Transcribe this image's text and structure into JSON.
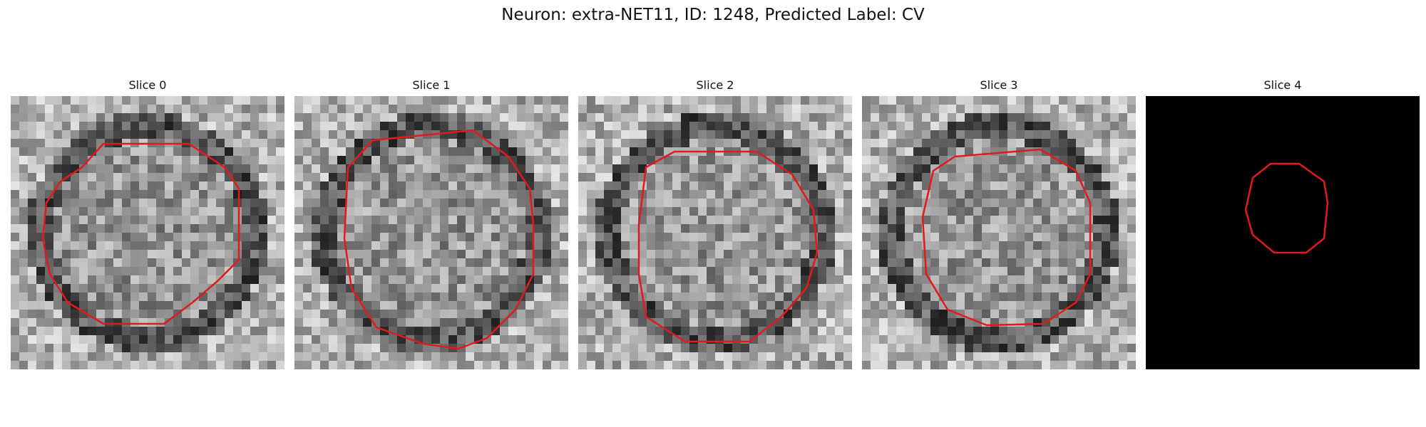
{
  "figure": {
    "title": "Neuron: extra-NET11, ID: 1248, Predicted Label: CV"
  },
  "slices": [
    {
      "title": "Slice 0",
      "contour_color": "#e31a1c"
    },
    {
      "title": "Slice 1",
      "contour_color": "#e31a1c"
    },
    {
      "title": "Slice 2",
      "contour_color": "#e31a1c"
    },
    {
      "title": "Slice 3",
      "contour_color": "#e31a1c"
    },
    {
      "title": "Slice 4",
      "contour_color": "#e31a1c",
      "background": "black"
    }
  ]
}
